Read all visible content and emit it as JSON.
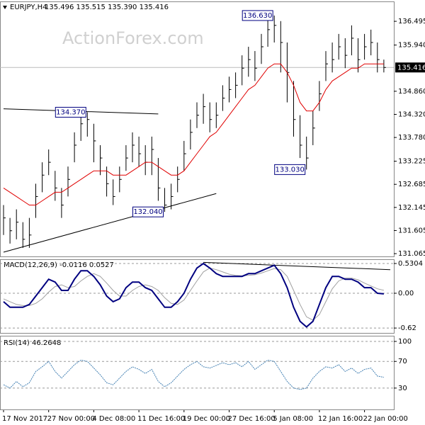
{
  "chart_data": [
    {
      "type": "ohlc",
      "title": "EURJPY,H4",
      "subtitle": "135.496 135.515 135.390 135.416",
      "watermark": "ActionForex.com",
      "categories": [
        "17 Nov 2017",
        null,
        null,
        null,
        null,
        null,
        null,
        "27 Nov 00:00",
        null,
        null,
        null,
        null,
        null,
        null,
        "4 Dec 08:00",
        null,
        null,
        null,
        null,
        null,
        null,
        "11 Dec 16:00",
        null,
        null,
        null,
        null,
        null,
        null,
        "19 Dec 00:00",
        null,
        null,
        null,
        null,
        null,
        null,
        "27 Dec 16:00",
        null,
        null,
        null,
        null,
        null,
        null,
        "5 Jan 08:00",
        null,
        null,
        null,
        null,
        null,
        null,
        "12 Jan 16:00",
        null,
        null,
        null,
        null,
        null,
        null,
        "22 Jan 00:00",
        null,
        null,
        null
      ],
      "high": [
        132.2,
        131.9,
        132.1,
        131.8,
        131.9,
        132.7,
        133.2,
        133.5,
        133.0,
        132.6,
        133.1,
        133.9,
        134.3,
        134.37,
        134.1,
        133.6,
        133.1,
        132.8,
        133.1,
        133.6,
        133.9,
        133.8,
        133.6,
        133.8,
        133.3,
        132.6,
        132.7,
        133.1,
        133.7,
        134.2,
        134.6,
        134.8,
        134.6,
        134.6,
        135.0,
        135.2,
        135.3,
        135.7,
        135.9,
        135.8,
        136.2,
        136.6,
        136.63,
        136.5,
        136.0,
        135.1,
        134.3,
        133.8,
        134.4,
        135.1,
        135.8,
        136.0,
        136.2,
        136.1,
        136.4,
        136.1,
        136.2,
        136.3,
        136.0,
        135.6
      ],
      "low": [
        131.5,
        131.3,
        131.4,
        131.2,
        131.2,
        131.9,
        132.5,
        132.9,
        132.3,
        131.9,
        132.4,
        133.2,
        133.7,
        133.8,
        133.2,
        132.9,
        132.4,
        132.2,
        132.5,
        133.0,
        133.2,
        133.1,
        132.9,
        132.9,
        132.3,
        132.04,
        132.1,
        132.5,
        133.0,
        133.5,
        134.0,
        134.1,
        133.9,
        134.0,
        134.4,
        134.6,
        134.7,
        135.0,
        135.2,
        135.1,
        135.5,
        135.9,
        136.0,
        135.3,
        134.6,
        133.8,
        133.3,
        133.03,
        133.6,
        134.4,
        135.1,
        135.3,
        135.6,
        135.4,
        135.7,
        135.3,
        135.6,
        135.7,
        135.3,
        135.3
      ],
      "close": [
        131.9,
        131.6,
        131.8,
        131.4,
        131.5,
        132.4,
        132.9,
        133.2,
        132.6,
        132.2,
        132.8,
        133.6,
        134.1,
        134.2,
        133.7,
        133.3,
        132.7,
        132.4,
        132.8,
        133.3,
        133.6,
        133.4,
        133.2,
        133.5,
        132.6,
        132.2,
        132.4,
        132.8,
        133.4,
        133.9,
        134.3,
        134.5,
        134.2,
        134.3,
        134.7,
        134.9,
        135.0,
        135.4,
        135.6,
        135.4,
        135.9,
        136.3,
        136.4,
        136.0,
        135.3,
        134.2,
        133.6,
        133.3,
        134.0,
        134.8,
        135.5,
        135.6,
        135.9,
        135.7,
        136.1,
        135.6,
        135.9,
        136.0,
        135.6,
        135.416
      ],
      "color": "#000000",
      "overlay": {
        "color": "#e00000",
        "values": [
          132.6,
          132.5,
          132.4,
          132.3,
          132.2,
          132.2,
          132.3,
          132.4,
          132.5,
          132.5,
          132.6,
          132.7,
          132.8,
          132.9,
          133.0,
          133.0,
          133.0,
          132.9,
          132.9,
          132.9,
          133.0,
          133.1,
          133.2,
          133.2,
          133.1,
          133.0,
          132.9,
          132.9,
          133.0,
          133.2,
          133.4,
          133.6,
          133.8,
          133.9,
          134.1,
          134.3,
          134.5,
          134.7,
          134.9,
          135.0,
          135.2,
          135.4,
          135.5,
          135.5,
          135.3,
          135.0,
          134.6,
          134.4,
          134.4,
          134.6,
          134.9,
          135.1,
          135.2,
          135.3,
          135.4,
          135.4,
          135.5,
          135.5,
          135.5,
          135.5
        ]
      },
      "last": 135.416,
      "annotations": [
        {
          "index": 13,
          "value": 134.37,
          "label": "134.370"
        },
        {
          "index": 42,
          "value": 136.63,
          "label": "136.630"
        },
        {
          "index": 47,
          "value": 133.03,
          "label": "133.030"
        },
        {
          "index": 25,
          "value": 132.04,
          "label": "132.040"
        }
      ],
      "trendlines": [
        {
          "x": [
            0,
            24
          ],
          "y": [
            134.45,
            134.33
          ]
        },
        {
          "x": [
            0,
            33
          ],
          "y": [
            131.1,
            132.47
          ]
        }
      ],
      "ylim": [
        131.0,
        136.96
      ],
      "yticks": [
        136.495,
        {
          "value": 135.94,
          "label": "135.940"
        },
        {
          "value": 134.86,
          "label": "134.860"
        },
        {
          "value": 134.32,
          "label": "134.320"
        },
        {
          "value": 133.78,
          "label": "133.780"
        },
        133.225,
        132.685,
        132.145,
        131.605,
        131.065
      ]
    },
    {
      "type": "macd",
      "title": "MACD(12,26,9) -0.0116 0.0527",
      "series": [
        {
          "color": "#000080",
          "values": [
            -0.15,
            -0.25,
            -0.25,
            -0.25,
            -0.2,
            -0.05,
            0.1,
            0.25,
            0.2,
            0.05,
            0.05,
            0.25,
            0.4,
            0.4,
            0.3,
            0.15,
            -0.05,
            -0.15,
            -0.1,
            0.1,
            0.2,
            0.2,
            0.1,
            0.05,
            -0.1,
            -0.25,
            -0.25,
            -0.15,
            0.0,
            0.25,
            0.45,
            0.53,
            0.45,
            0.35,
            0.3,
            0.3,
            0.3,
            0.3,
            0.35,
            0.35,
            0.4,
            0.45,
            0.5,
            0.35,
            0.1,
            -0.25,
            -0.5,
            -0.6,
            -0.5,
            -0.2,
            0.1,
            0.3,
            0.3,
            0.25,
            0.25,
            0.2,
            0.1,
            0.1,
            0.0,
            -0.0116
          ]
        },
        {
          "color": "#a0a0a0",
          "values": [
            -0.1,
            -0.15,
            -0.2,
            -0.22,
            -0.22,
            -0.18,
            -0.1,
            0.02,
            0.12,
            0.15,
            0.1,
            0.12,
            0.22,
            0.3,
            0.35,
            0.3,
            0.18,
            0.05,
            -0.05,
            -0.05,
            0.05,
            0.12,
            0.15,
            0.12,
            0.05,
            -0.08,
            -0.18,
            -0.2,
            -0.12,
            0.05,
            0.22,
            0.38,
            0.45,
            0.42,
            0.38,
            0.34,
            0.32,
            0.31,
            0.32,
            0.33,
            0.36,
            0.4,
            0.44,
            0.42,
            0.3,
            0.05,
            -0.2,
            -0.42,
            -0.48,
            -0.38,
            -0.15,
            0.08,
            0.22,
            0.27,
            0.27,
            0.24,
            0.18,
            0.13,
            0.08,
            0.0527
          ]
        }
      ],
      "trendlines": [
        {
          "x": [
            31,
            60
          ],
          "y": [
            0.55,
            0.42
          ]
        }
      ],
      "ylim": [
        -0.707,
        0.606
      ],
      "yticks": [
        0.5304,
        {
          "value": 0,
          "label": "0.00"
        },
        -0.62
      ]
    },
    {
      "type": "line",
      "title": "RSI(14) 46.2648",
      "color": "#4682b4",
      "values": [
        35,
        30,
        40,
        32,
        38,
        55,
        62,
        70,
        55,
        45,
        55,
        65,
        72,
        70,
        60,
        50,
        38,
        35,
        45,
        55,
        62,
        58,
        52,
        58,
        40,
        32,
        38,
        48,
        58,
        65,
        70,
        62,
        60,
        64,
        68,
        65,
        68,
        62,
        70,
        58,
        65,
        72,
        70,
        55,
        40,
        30,
        28,
        30,
        45,
        55,
        62,
        60,
        65,
        55,
        60,
        52,
        58,
        60,
        48,
        46.2648
      ],
      "ylim": [
        -2,
        108.5
      ],
      "yticks": [
        100,
        70,
        30
      ]
    }
  ]
}
